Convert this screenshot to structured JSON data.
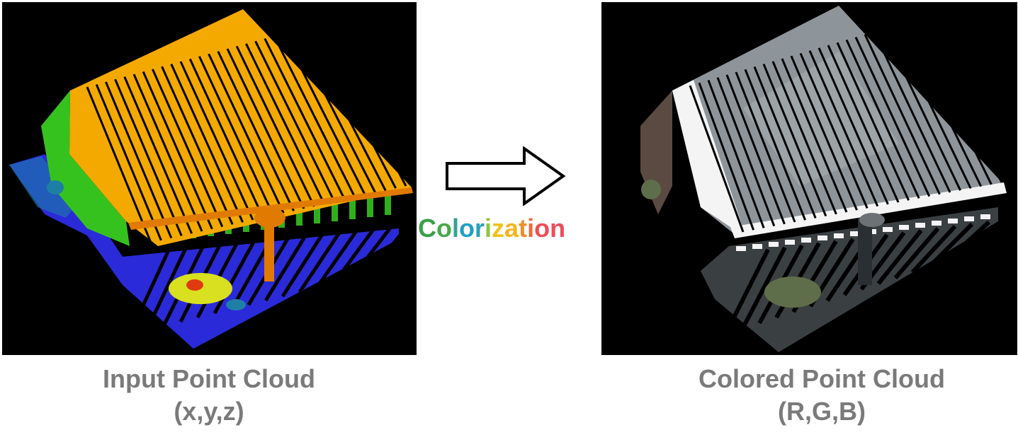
{
  "left_panel": {
    "caption_line1": "Input Point Cloud",
    "caption_line2": "(x,y,z)",
    "colors": {
      "roof": "#f4a900",
      "roof_shadow": "#e07a00",
      "wall_green": "#35c21f",
      "ground_blue": "#2a2ad8",
      "ground_teal": "#1e7fa6",
      "yellow_patch": "#d8e020",
      "red_patch": "#e03a10"
    }
  },
  "right_panel": {
    "caption_line1": "Colored Point Cloud",
    "caption_line2": "(R,G,B)",
    "colors": {
      "roof": "#8e959a",
      "roof_light": "#b8bfc3",
      "fascia": "#f4f4f4",
      "shadow": "#2a2f33",
      "tree": "#5f6e4a"
    }
  },
  "arrow": {
    "label": "Colorization",
    "icon": "right-arrow-outline-icon"
  },
  "colorization_letters": [
    {
      "char": "C",
      "color": "#3aa04a"
    },
    {
      "char": "o",
      "color": "#4aa84a"
    },
    {
      "char": "l",
      "color": "#36a29c"
    },
    {
      "char": "o",
      "color": "#1fa0c8"
    },
    {
      "char": "r",
      "color": "#2aa0c0"
    },
    {
      "char": "i",
      "color": "#8cc63c"
    },
    {
      "char": "z",
      "color": "#f2c21a"
    },
    {
      "char": "a",
      "color": "#f6b41e"
    },
    {
      "char": "t",
      "color": "#f0902a"
    },
    {
      "char": "i",
      "color": "#ee6a3a"
    },
    {
      "char": "o",
      "color": "#ec4f55"
    },
    {
      "char": "n",
      "color": "#e94e5e"
    }
  ]
}
